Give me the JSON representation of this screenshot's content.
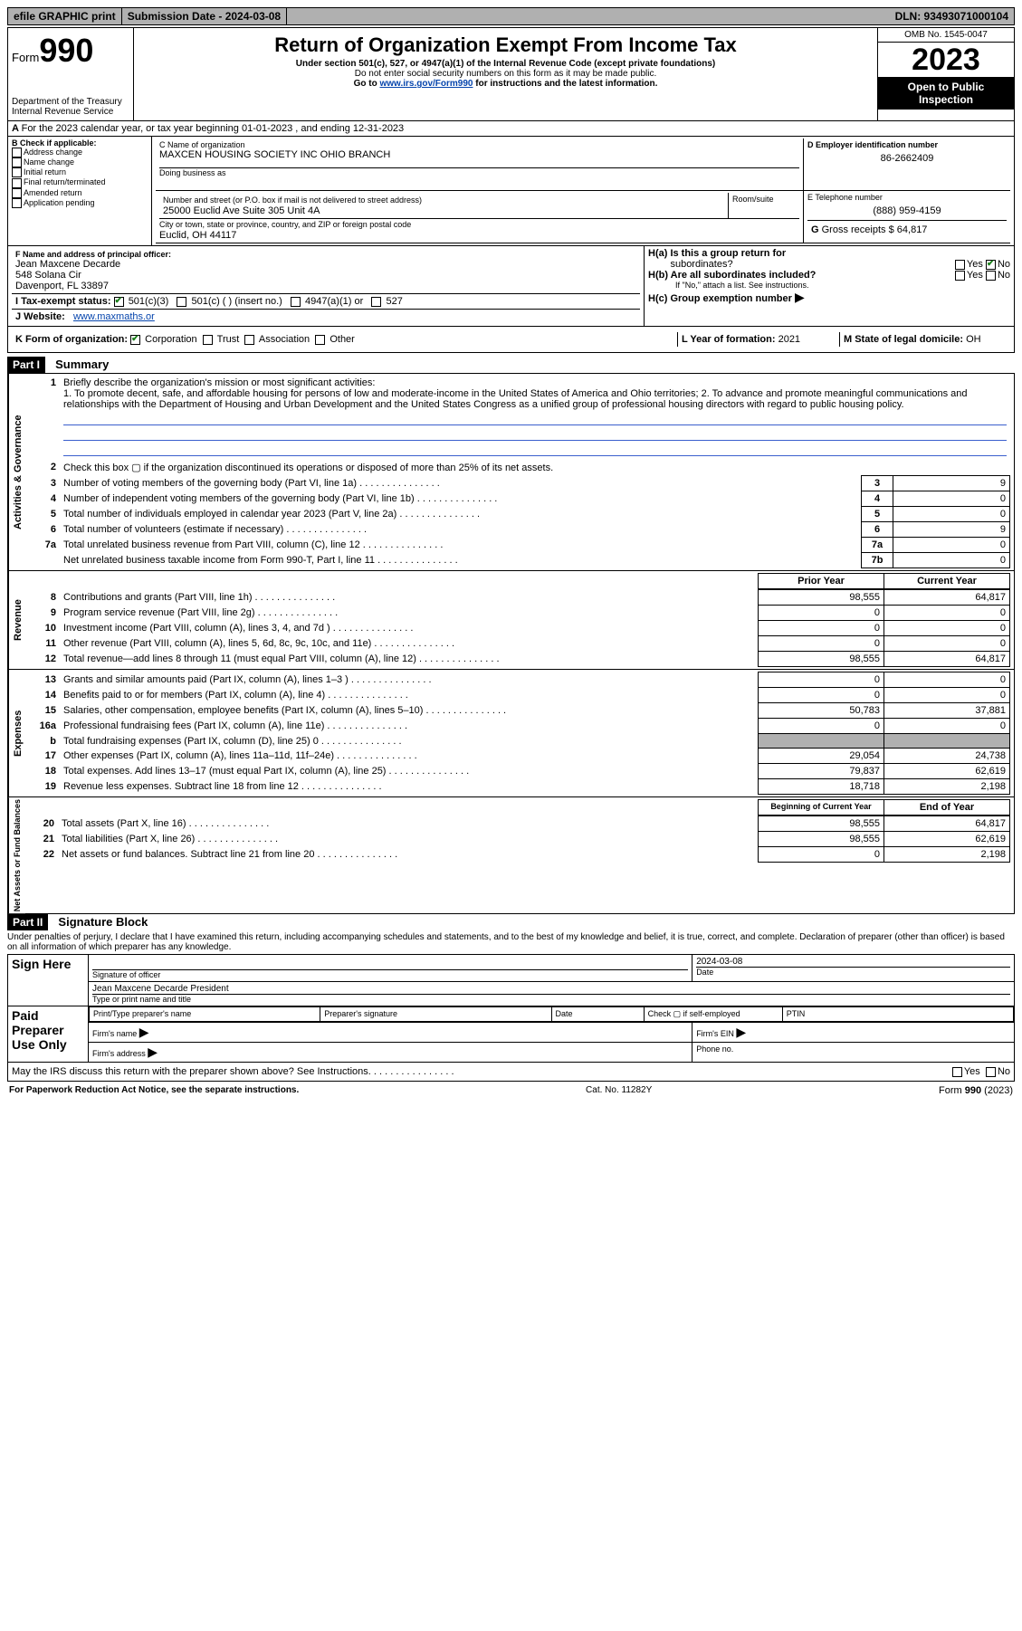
{
  "topbar": {
    "efile": "efile GRAPHIC print",
    "submission": "Submission Date - 2024-03-08",
    "dln": "DLN: 93493071000104"
  },
  "header": {
    "form_word": "Form",
    "form_num": "990",
    "dept": "Department of the Treasury",
    "irs": "Internal Revenue Service",
    "title": "Return of Organization Exempt From Income Tax",
    "sub1": "Under section 501(c), 527, or 4947(a)(1) of the Internal Revenue Code (except private foundations)",
    "sub2": "Do not enter social security numbers on this form as it may be made public.",
    "sub3_pre": "Go to ",
    "sub3_link": "www.irs.gov/Form990",
    "sub3_post": " for instructions and the latest information.",
    "omb": "OMB No. 1545-0047",
    "year": "2023",
    "open1": "Open to Public",
    "open2": "Inspection"
  },
  "line_a": "For the 2023 calendar year, or tax year beginning 01-01-2023   , and ending 12-31-2023",
  "b": {
    "label": "B Check if applicable:",
    "opts": [
      "Address change",
      "Name change",
      "Initial return",
      "Final return/terminated",
      "Amended return",
      "Application pending"
    ]
  },
  "c": {
    "name_label": "C Name of organization",
    "name": "MAXCEN HOUSING SOCIETY INC OHIO BRANCH",
    "dba_label": "Doing business as",
    "addr_label": "Number and street (or P.O. box if mail is not delivered to street address)",
    "room_label": "Room/suite",
    "addr": "25000 Euclid Ave Suite 305 Unit 4A",
    "city_label": "City or town, state or province, country, and ZIP or foreign postal code",
    "city": "Euclid, OH  44117"
  },
  "d": {
    "label": "D Employer identification number",
    "val": "86-2662409"
  },
  "e": {
    "label": "E Telephone number",
    "val": "(888) 959-4159"
  },
  "g": {
    "label": "G",
    "text": "Gross receipts $",
    "val": "64,817"
  },
  "f": {
    "label": "F  Name and address of principal officer:",
    "line1": "Jean Maxcene Decarde",
    "line2": "548 Solana Cir",
    "line3": "Davenport, FL  33897"
  },
  "h": {
    "a_label": "H(a)  Is this a group return for",
    "a_label2": "subordinates?",
    "b_label": "H(b)  Are all subordinates included?",
    "b_note": "If \"No,\" attach a list. See instructions.",
    "c_label": "H(c)  Group exemption number ",
    "yes": "Yes",
    "no": "No"
  },
  "i": {
    "label": "I    Tax-exempt status:",
    "opts": [
      "501(c)(3)",
      "501(c) (  ) (insert no.)",
      "4947(a)(1) or",
      "527"
    ]
  },
  "j": {
    "label": "J    Website:",
    "val": "www.maxmaths.or"
  },
  "k": {
    "label": "K Form of organization:",
    "opts": [
      "Corporation",
      "Trust",
      "Association",
      "Other"
    ]
  },
  "l": {
    "label": "L Year of formation:",
    "val": "2021"
  },
  "m": {
    "label": "M State of legal domicile:",
    "val": "OH"
  },
  "part1": {
    "tag": "Part I",
    "title": "Summary",
    "q1_label": "1",
    "q1_text": "Briefly describe the organization's mission or most significant activities:",
    "q1_mission": "1. To promote decent, safe, and affordable housing for persons of low and moderate-income in the United States of America and Ohio territories; 2. To advance and promote meaningful communications and relationships with the Department of Housing and Urban Development and the United States Congress as a unified group of professional housing directors with regard to public housing policy.",
    "q2_label": "2",
    "q2_text": "Check this box ▢ if the organization discontinued its operations or disposed of more than 25% of its net assets.",
    "gov_label": "Activities & Governance",
    "rev_label": "Revenue",
    "exp_label": "Expenses",
    "net_label": "Net Assets or Fund Balances",
    "lines_gov": [
      {
        "n": "3",
        "t": "Number of voting members of the governing body (Part VI, line 1a)",
        "box": "3",
        "val": "9"
      },
      {
        "n": "4",
        "t": "Number of independent voting members of the governing body (Part VI, line 1b)",
        "box": "4",
        "val": "0"
      },
      {
        "n": "5",
        "t": "Total number of individuals employed in calendar year 2023 (Part V, line 2a)",
        "box": "5",
        "val": "0"
      },
      {
        "n": "6",
        "t": "Total number of volunteers (estimate if necessary)",
        "box": "6",
        "val": "9"
      },
      {
        "n": "7a",
        "t": "Total unrelated business revenue from Part VIII, column (C), line 12",
        "box": "7a",
        "val": "0"
      },
      {
        "n": "",
        "t": "Net unrelated business taxable income from Form 990-T, Part I, line 11",
        "box": "7b",
        "val": "0"
      }
    ],
    "col_prior": "Prior Year",
    "col_curr": "Current Year",
    "lines_rev": [
      {
        "n": "8",
        "t": "Contributions and grants (Part VIII, line 1h)",
        "p": "98,555",
        "c": "64,817"
      },
      {
        "n": "9",
        "t": "Program service revenue (Part VIII, line 2g)",
        "p": "0",
        "c": "0"
      },
      {
        "n": "10",
        "t": "Investment income (Part VIII, column (A), lines 3, 4, and 7d )",
        "p": "0",
        "c": "0"
      },
      {
        "n": "11",
        "t": "Other revenue (Part VIII, column (A), lines 5, 6d, 8c, 9c, 10c, and 11e)",
        "p": "0",
        "c": "0"
      },
      {
        "n": "12",
        "t": "Total revenue—add lines 8 through 11 (must equal Part VIII, column (A), line 12)",
        "p": "98,555",
        "c": "64,817"
      }
    ],
    "lines_exp": [
      {
        "n": "13",
        "t": "Grants and similar amounts paid (Part IX, column (A), lines 1–3 )",
        "p": "0",
        "c": "0"
      },
      {
        "n": "14",
        "t": "Benefits paid to or for members (Part IX, column (A), line 4)",
        "p": "0",
        "c": "0"
      },
      {
        "n": "15",
        "t": "Salaries, other compensation, employee benefits (Part IX, column (A), lines 5–10)",
        "p": "50,783",
        "c": "37,881"
      },
      {
        "n": "16a",
        "t": "Professional fundraising fees (Part IX, column (A), line 11e)",
        "p": "0",
        "c": "0"
      },
      {
        "n": "b",
        "t": "Total fundraising expenses (Part IX, column (D), line 25) 0",
        "p": "grey",
        "c": "grey"
      },
      {
        "n": "17",
        "t": "Other expenses (Part IX, column (A), lines 11a–11d, 11f–24e)",
        "p": "29,054",
        "c": "24,738"
      },
      {
        "n": "18",
        "t": "Total expenses. Add lines 13–17 (must equal Part IX, column (A), line 25)",
        "p": "79,837",
        "c": "62,619"
      },
      {
        "n": "19",
        "t": "Revenue less expenses. Subtract line 18 from line 12",
        "p": "18,718",
        "c": "2,198"
      }
    ],
    "col_boy": "Beginning of Current Year",
    "col_eoy": "End of Year",
    "lines_net": [
      {
        "n": "20",
        "t": "Total assets (Part X, line 16)",
        "p": "98,555",
        "c": "64,817"
      },
      {
        "n": "21",
        "t": "Total liabilities (Part X, line 26)",
        "p": "98,555",
        "c": "62,619"
      },
      {
        "n": "22",
        "t": "Net assets or fund balances. Subtract line 21 from line 20",
        "p": "0",
        "c": "2,198"
      }
    ]
  },
  "part2": {
    "tag": "Part II",
    "title": "Signature Block",
    "decl": "Under penalties of perjury, I declare that I have examined this return, including accompanying schedules and statements, and to the best of my knowledge and belief, it is true, correct, and complete. Declaration of preparer (other than officer) is based on all information of which preparer has any knowledge.",
    "sign_here": "Sign Here",
    "sig_officer_label": "Signature of officer",
    "sig_date": "2024-03-08",
    "date_label": "Date",
    "sig_name": "Jean Maxcene Decarde  President",
    "sig_name_label": "Type or print name and title",
    "paid": "Paid Preparer Use Only",
    "prep_name_label": "Print/Type preparer's name",
    "prep_sig_label": "Preparer's signature",
    "prep_date_label": "Date",
    "prep_check_label": "Check ▢ if self-employed",
    "ptin_label": "PTIN",
    "firm_name_label": "Firm's name ",
    "firm_ein_label": "Firm's EIN ",
    "firm_addr_label": "Firm's address ",
    "phone_label": "Phone no.",
    "discuss": "May the IRS discuss this return with the preparer shown above? See Instructions.",
    "yes": "Yes",
    "no": "No"
  },
  "footer": {
    "left": "For Paperwork Reduction Act Notice, see the separate instructions.",
    "mid": "Cat. No. 11282Y",
    "right": "Form 990 (2023)"
  }
}
